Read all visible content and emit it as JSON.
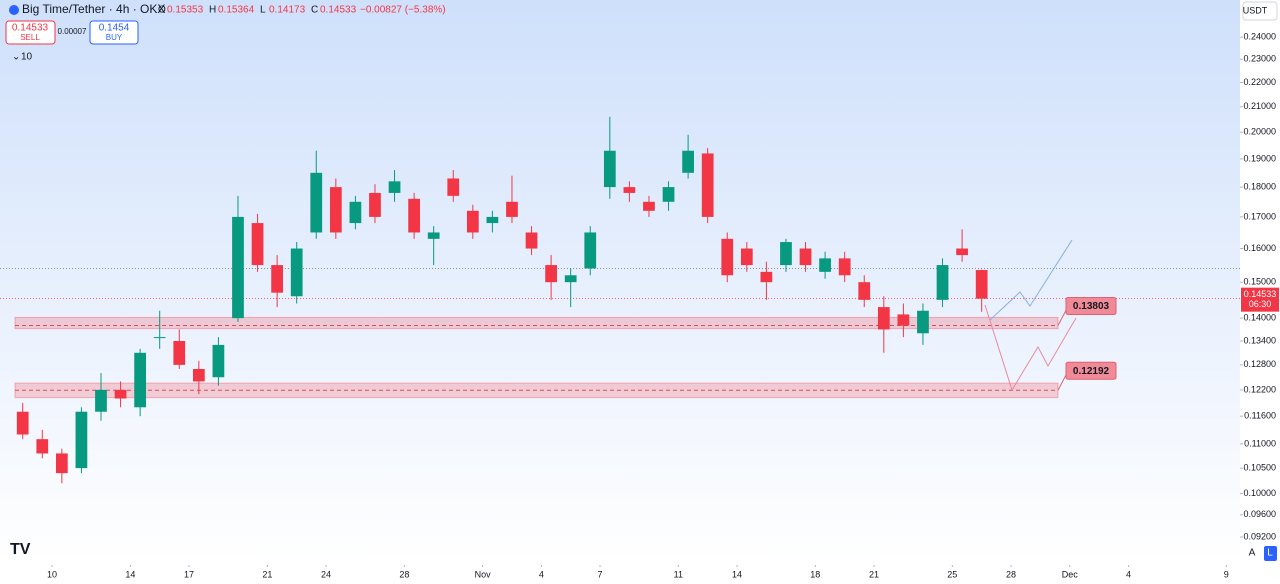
{
  "chart_data": {
    "type": "candlestick",
    "header": {
      "symbol": "Big Time/Tether · 4h · OKX",
      "ohlc_letters": [
        "O",
        "H",
        "L",
        "C"
      ],
      "open": 0.15353,
      "high": 0.15364,
      "low": 0.14173,
      "close": 0.14533,
      "change": "−0.00827 (−5.38%)",
      "sell_price": 0.14533,
      "sell_label": "SELL",
      "spread": 7e-05,
      "buy_price": 0.1454,
      "buy_label": "BUY",
      "indicator_count": 10
    },
    "currency": "USDT",
    "last_price": 0.14533,
    "countdown": "06:30",
    "scale_buttons": [
      "A",
      "L"
    ],
    "colors": {
      "up": "#089981",
      "down": "#f23645"
    },
    "log_scale": true,
    "xlim": [
      7.34,
      70.7
    ],
    "ylim": [
      0.0872,
      0.2577
    ],
    "xticks": [
      {
        "value": 10,
        "label": "10"
      },
      {
        "value": 14,
        "label": "14"
      },
      {
        "value": 17,
        "label": "17"
      },
      {
        "value": 21,
        "label": "21"
      },
      {
        "value": 24,
        "label": "24"
      },
      {
        "value": 28,
        "label": "28"
      },
      {
        "value": 32,
        "label": "Nov"
      },
      {
        "value": 35,
        "label": "4"
      },
      {
        "value": 38,
        "label": "7"
      },
      {
        "value": 42,
        "label": "11"
      },
      {
        "value": 45,
        "label": "14"
      },
      {
        "value": 49,
        "label": "18"
      },
      {
        "value": 52,
        "label": "21"
      },
      {
        "value": 56,
        "label": "25"
      },
      {
        "value": 59,
        "label": "28"
      },
      {
        "value": 62,
        "label": "Dec"
      },
      {
        "value": 65,
        "label": "4"
      },
      {
        "value": 70,
        "label": "9"
      }
    ],
    "yticks": [
      {
        "value": 0.092,
        "label": "0.09200"
      },
      {
        "value": 0.096,
        "label": "0.09600"
      },
      {
        "value": 0.1,
        "label": "0.10000"
      },
      {
        "value": 0.105,
        "label": "0.10500"
      },
      {
        "value": 0.11,
        "label": "0.11000"
      },
      {
        "value": 0.116,
        "label": "0.11600"
      },
      {
        "value": 0.122,
        "label": "0.12200"
      },
      {
        "value": 0.128,
        "label": "0.12800"
      },
      {
        "value": 0.134,
        "label": "0.13400"
      },
      {
        "value": 0.14,
        "label": "0.14000"
      },
      {
        "value": 0.15,
        "label": "0.15000"
      },
      {
        "value": 0.16,
        "label": "0.16000"
      },
      {
        "value": 0.17,
        "label": "0.17000"
      },
      {
        "value": 0.18,
        "label": "0.18000"
      },
      {
        "value": 0.19,
        "label": "0.19000"
      },
      {
        "value": 0.2,
        "label": "0.20000"
      },
      {
        "value": 0.21,
        "label": "0.21000"
      },
      {
        "value": 0.22,
        "label": "0.22000"
      },
      {
        "value": 0.23,
        "label": "0.23000"
      },
      {
        "value": 0.24,
        "label": "0.24000"
      }
    ],
    "zones": [
      {
        "level": 0.13803,
        "low": 0.1372,
        "high": 0.1402
      },
      {
        "level": 0.12192,
        "low": 0.1202,
        "high": 0.1236
      }
    ],
    "reference_line": 0.154,
    "candles": {
      "x": [
        8,
        9,
        10,
        11,
        12,
        13,
        14,
        15,
        16,
        17,
        18,
        19,
        20,
        21,
        22,
        23,
        24,
        25,
        26,
        27,
        28,
        29,
        30,
        31,
        32,
        33,
        34,
        35,
        36,
        37,
        38,
        39,
        40,
        41,
        42,
        43,
        44,
        45,
        46,
        47,
        48,
        49,
        50,
        51,
        52,
        53,
        54,
        55,
        56,
        57
      ],
      "open": [
        0.117,
        0.111,
        0.108,
        0.105,
        0.117,
        0.122,
        0.118,
        0.135,
        0.134,
        0.127,
        0.125,
        0.14,
        0.168,
        0.155,
        0.146,
        0.165,
        0.18,
        0.168,
        0.178,
        0.178,
        0.176,
        0.163,
        0.183,
        0.172,
        0.168,
        0.175,
        0.165,
        0.155,
        0.15,
        0.154,
        0.18,
        0.18,
        0.175,
        0.175,
        0.185,
        0.192,
        0.163,
        0.16,
        0.153,
        0.155,
        0.16,
        0.153,
        0.157,
        0.15,
        0.143,
        0.141,
        0.136,
        0.145,
        0.16,
        0.15353
      ],
      "high": [
        0.119,
        0.113,
        0.109,
        0.118,
        0.126,
        0.124,
        0.132,
        0.142,
        0.137,
        0.129,
        0.135,
        0.177,
        0.171,
        0.158,
        0.162,
        0.193,
        0.183,
        0.177,
        0.181,
        0.186,
        0.178,
        0.167,
        0.186,
        0.174,
        0.172,
        0.184,
        0.167,
        0.158,
        0.154,
        0.167,
        0.206,
        0.182,
        0.177,
        0.182,
        0.199,
        0.194,
        0.165,
        0.162,
        0.156,
        0.163,
        0.162,
        0.159,
        0.159,
        0.152,
        0.146,
        0.144,
        0.144,
        0.157,
        0.166,
        0.15364
      ],
      "low": [
        0.111,
        0.107,
        0.102,
        0.104,
        0.115,
        0.118,
        0.116,
        0.132,
        0.127,
        0.121,
        0.123,
        0.139,
        0.153,
        0.143,
        0.144,
        0.163,
        0.163,
        0.166,
        0.168,
        0.175,
        0.163,
        0.155,
        0.175,
        0.163,
        0.165,
        0.168,
        0.158,
        0.145,
        0.143,
        0.152,
        0.176,
        0.175,
        0.17,
        0.172,
        0.183,
        0.168,
        0.15,
        0.153,
        0.145,
        0.153,
        0.153,
        0.151,
        0.15,
        0.143,
        0.131,
        0.135,
        0.133,
        0.143,
        0.156,
        0.14173
      ],
      "close": [
        0.112,
        0.108,
        0.104,
        0.117,
        0.122,
        0.12,
        0.131,
        0.135,
        0.128,
        0.124,
        0.133,
        0.17,
        0.155,
        0.147,
        0.16,
        0.185,
        0.165,
        0.175,
        0.17,
        0.182,
        0.165,
        0.165,
        0.177,
        0.165,
        0.17,
        0.17,
        0.16,
        0.15,
        0.152,
        0.165,
        0.193,
        0.178,
        0.172,
        0.18,
        0.193,
        0.17,
        0.152,
        0.155,
        0.15,
        0.162,
        0.155,
        0.157,
        0.152,
        0.145,
        0.137,
        0.138,
        0.142,
        0.155,
        0.158,
        0.14533
      ]
    }
  }
}
